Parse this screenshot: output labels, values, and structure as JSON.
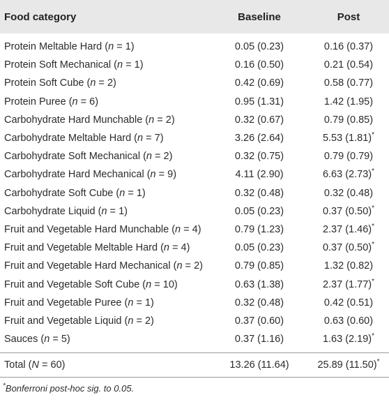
{
  "headers": {
    "food_category": "Food category",
    "baseline": "Baseline",
    "post": "Post"
  },
  "rows": [
    {
      "name": "Protein Meltable Hard",
      "n": "1",
      "baseline": "0.05 (0.23)",
      "post": "0.16 (0.37)",
      "sig": ""
    },
    {
      "name": "Protein Soft Mechanical",
      "n": "1",
      "baseline": "0.16 (0.50)",
      "post": "0.21 (0.54)",
      "sig": ""
    },
    {
      "name": "Protein Soft Cube",
      "n": "2",
      "baseline": "0.42 (0.69)",
      "post": "0.58 (0.77)",
      "sig": ""
    },
    {
      "name": "Protein Puree",
      "n": "6",
      "baseline": "0.95 (1.31)",
      "post": "1.42 (1.95)",
      "sig": ""
    },
    {
      "name": "Carbohydrate Hard Munchable",
      "n": "2",
      "baseline": "0.32 (0.67)",
      "post": "0.79 (0.85)",
      "sig": ""
    },
    {
      "name": "Carbohydrate Meltable Hard",
      "n": "7",
      "baseline": "3.26 (2.64)",
      "post": "5.53 (1.81)",
      "sig": "*"
    },
    {
      "name": "Carbohydrate Soft Mechanical",
      "n": "2",
      "baseline": "0.32 (0.75)",
      "post": "0.79 (0.79)",
      "sig": ""
    },
    {
      "name": "Carbohydrate Hard Mechanical",
      "n": "9",
      "baseline": "4.11 (2.90)",
      "post": "6.63 (2.73)",
      "sig": "*"
    },
    {
      "name": "Carbohydrate Soft Cube",
      "n": "1",
      "baseline": "0.32 (0.48)",
      "post": "0.32 (0.48)",
      "sig": ""
    },
    {
      "name": "Carbohydrate Liquid",
      "n": "1",
      "baseline": "0.05 (0.23)",
      "post": "0.37 (0.50)",
      "sig": "*"
    },
    {
      "name": "Fruit and Vegetable Hard Munchable",
      "n": "4",
      "baseline": "0.79 (1.23)",
      "post": "2.37 (1.46)",
      "sig": "*"
    },
    {
      "name": "Fruit and Vegetable Meltable Hard",
      "n": "4",
      "baseline": "0.05 (0.23)",
      "post": "0.37 (0.50)",
      "sig": "*"
    },
    {
      "name": "Fruit and Vegetable Hard Mechanical",
      "n": "2",
      "baseline": "0.79 (0.85)",
      "post": "1.32 (0.82)",
      "sig": ""
    },
    {
      "name": "Fruit and Vegetable Soft Cube",
      "n": "10",
      "baseline": "0.63 (1.38)",
      "post": "2.37 (1.77)",
      "sig": "*"
    },
    {
      "name": "Fruit and Vegetable Puree",
      "n": "1",
      "baseline": "0.32 (0.48)",
      "post": "0.42 (0.51)",
      "sig": ""
    },
    {
      "name": "Fruit and Vegetable Liquid",
      "n": "2",
      "baseline": "0.37 (0.60)",
      "post": "0.63 (0.60)",
      "sig": ""
    },
    {
      "name": "Sauces",
      "n": "5",
      "baseline": "0.37 (1.16)",
      "post": "1.63 (2.19)",
      "sig": "*"
    }
  ],
  "total": {
    "label": "Total",
    "n_symbol": "N",
    "n": "60",
    "baseline": "13.26 (11.64)",
    "post": "25.89 (11.50)",
    "sig": "*"
  },
  "footnote": {
    "mark": "*",
    "text": "Bonferroni post-hoc sig. to 0.05."
  },
  "colors": {
    "header_bg": "#e8e8e8",
    "rule": "#9a9a9a",
    "text": "#2b2b2b"
  }
}
